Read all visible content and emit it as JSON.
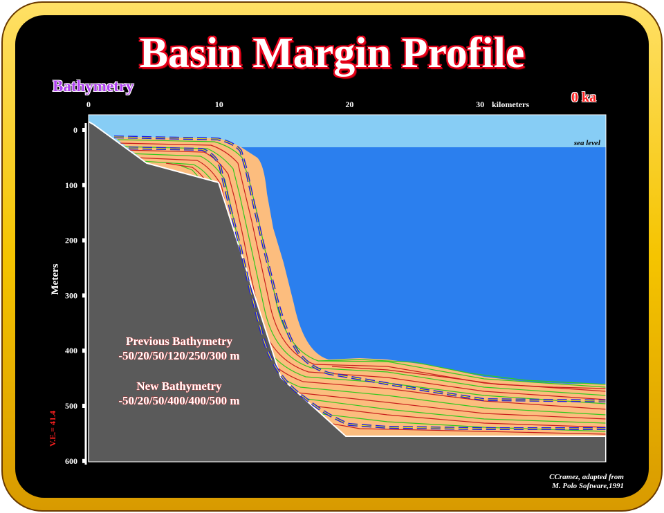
{
  "title": "Basin Margin Profile",
  "subtitle": "Bathymetry",
  "age_label": "0 ka",
  "x_axis": {
    "ticks": [
      "0",
      "10",
      "20",
      "30"
    ],
    "unit_label": "kilometers"
  },
  "y_axis": {
    "label": "Meters",
    "ticks": [
      "0",
      "100",
      "200",
      "300",
      "400",
      "500",
      "600"
    ]
  },
  "sea_level_label": "sea level",
  "vertical_exaggeration": "V.E.= 41.4",
  "annotations": {
    "previous_title": "Previous Bathymetry",
    "previous_values": "-50/20/50/120/250/300 m",
    "new_title": "New Bathymetry",
    "new_values": "-50/20/50/400/400/500 m"
  },
  "credit": {
    "line1": "CCramez, adapted  from",
    "line2": "M. Polo Software,1991"
  },
  "colors": {
    "frame_gold": "#f5c400",
    "background": "#000000",
    "sky": "#87cdf5",
    "water": "#2b7fee",
    "basement": "#5a5a5a",
    "sediment": "#fcbd7e",
    "green_layers": "#32c81e",
    "red_layers": "#c81e1e",
    "bathymetry_dash": "#1a1ae6"
  }
}
